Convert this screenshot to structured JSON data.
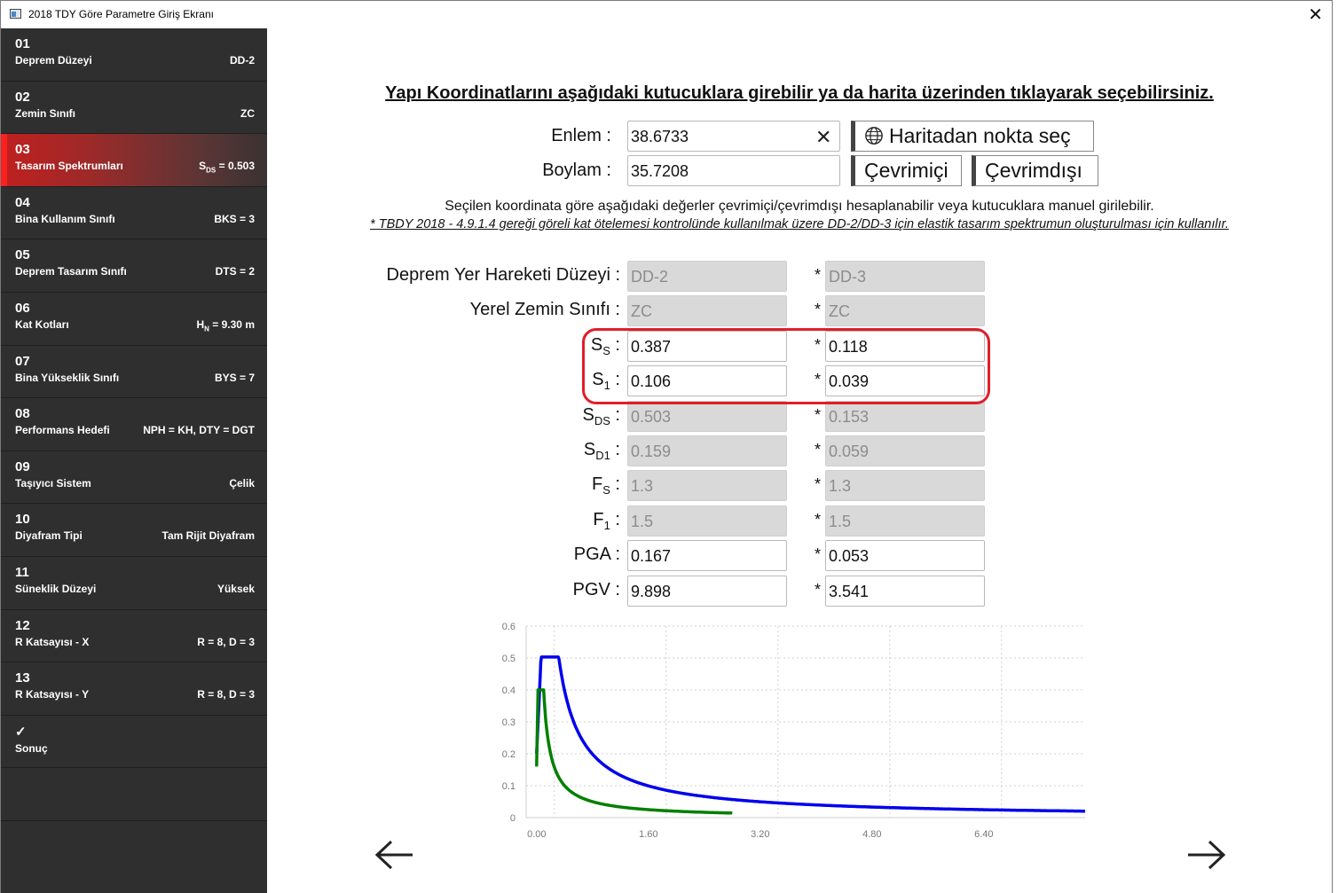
{
  "window": {
    "title": "2018 TDY Göre Parametre Giriş Ekranı"
  },
  "sidebar": {
    "items": [
      {
        "num": "01",
        "label": "Deprem Düzeyi",
        "value": "DD-2"
      },
      {
        "num": "02",
        "label": "Zemin Sınıfı",
        "value": "ZC"
      },
      {
        "num": "03",
        "label": "Tasarım Spektrumları",
        "value_prefix": "S",
        "value_sub": "DS",
        "value_rest": " = 0.503",
        "active": true
      },
      {
        "num": "04",
        "label": "Bina Kullanım Sınıfı",
        "value": "BKS = 3"
      },
      {
        "num": "05",
        "label": "Deprem Tasarım Sınıfı",
        "value": "DTS = 2"
      },
      {
        "num": "06",
        "label": "Kat Kotları",
        "value_prefix": "H",
        "value_sub": "N",
        "value_rest": " = 9.30 m"
      },
      {
        "num": "07",
        "label": "Bina Yükseklik Sınıfı",
        "value": "BYS = 7"
      },
      {
        "num": "08",
        "label": "Performans Hedefi",
        "value": "NPH = KH, DTY = DGT"
      },
      {
        "num": "09",
        "label": "Taşıyıcı Sistem",
        "value": "Çelik"
      },
      {
        "num": "10",
        "label": "Diyafram Tipi",
        "value": "Tam Rijit Diyafram"
      },
      {
        "num": "11",
        "label": "Süneklik Düzeyi",
        "value": "Yüksek"
      },
      {
        "num": "12",
        "label": "R Katsayısı - X",
        "value": "R = 8, D = 3"
      },
      {
        "num": "13",
        "label": "R Katsayısı - Y",
        "value": "R = 8, D = 3"
      },
      {
        "num": "✓",
        "label": "Sonuç",
        "value": ""
      }
    ]
  },
  "main": {
    "heading": "Yapı Koordinatlarını aşağıdaki kutucuklara girebilir ya da harita üzerinden tıklayarak seçebilirsiniz.",
    "enlem_label": "Enlem :",
    "enlem_value": "38.6733",
    "boylam_label": "Boylam :",
    "boylam_value": "35.7208",
    "map_button": "Haritadan nokta seç",
    "online_button": "Çevrimiçi",
    "offline_button": "Çevrimdışı",
    "info_text": "Seçilen koordinata göre aşağıdaki değerler çevrimiçi/çevrimdışı hesaplanabilir veya kutucuklara manuel girilebilir.",
    "note_text": "* TBDY 2018 - 4.9.1.4 gereği göreli kat ötelemesi kontrolünde kullanılmak üzere DD-2/DD-3 için elastik tasarım spektrumun oluşturulması için kullanılır.",
    "star": "*",
    "params": {
      "deprem_label": "Deprem Yer Hareketi Düzeyi :",
      "zemin_label": "Yerel Zemin Sınıfı :",
      "ss_label_main": "S",
      "ss_label_sub": "S",
      "s1_label_main": "S",
      "s1_label_sub": "1",
      "sds_label_main": "S",
      "sds_label_sub": "DS",
      "sd1_label_main": "S",
      "sd1_label_sub": "D1",
      "fs_label_main": "F",
      "fs_label_sub": "S",
      "f1_label_main": "F",
      "f1_label_sub": "1",
      "colon": " :",
      "pga_label": "PGA :",
      "pgv_label": "PGV :",
      "dd2": {
        "deprem": "DD-2",
        "zemin": "ZC",
        "ss": "0.387",
        "s1": "0.106",
        "sds": "0.503",
        "sd1": "0.159",
        "fs": "1.3",
        "f1": "1.5",
        "pga": "0.167",
        "pgv": "9.898"
      },
      "dd3": {
        "deprem": "DD-3",
        "zemin": "ZC",
        "ss": "0.118",
        "s1": "0.039",
        "sds": "0.153",
        "sd1": "0.059",
        "fs": "1.3",
        "f1": "1.5",
        "pga": "0.053",
        "pgv": "3.541"
      }
    }
  },
  "chart_data": {
    "type": "line",
    "title": "",
    "xlabel": "",
    "ylabel": "",
    "xlim": [
      -0.15,
      7.85
    ],
    "ylim": [
      0,
      0.6
    ],
    "xticks": [
      "0.00",
      "1.60",
      "3.20",
      "4.80",
      "6.40"
    ],
    "xtick_values": [
      0,
      1.6,
      3.2,
      4.8,
      6.4
    ],
    "yticks": [
      "0",
      "0.1",
      "0.2",
      "0.3",
      "0.4",
      "0.5",
      "0.6"
    ],
    "grid": true,
    "series": [
      {
        "color": "#0000ee",
        "params": {
          "sds": 0.503,
          "sd1": 0.159,
          "tmax": 7.85
        }
      },
      {
        "color": "#008000",
        "params": {
          "sds": 0.4,
          "sd1": 0.04,
          "tmax": 2.8
        }
      }
    ]
  }
}
